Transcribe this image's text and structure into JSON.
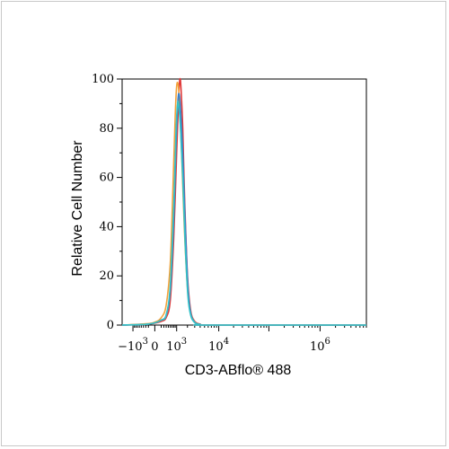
{
  "chart_data": {
    "type": "line",
    "title": "",
    "xlabel": "CD3-ABflo® 488",
    "ylabel": "Relative Cell Number",
    "x_scale": "biexponential",
    "xlim": [
      -2000,
      8000000
    ],
    "ylim": [
      0,
      100
    ],
    "y_ticks": [
      0,
      20,
      40,
      60,
      80,
      100
    ],
    "y_tick_labels": [
      "0",
      "20",
      "40",
      "60",
      "80",
      "100"
    ],
    "x_ticks": [
      -1000,
      0,
      1000,
      10000,
      1000000
    ],
    "x_tick_labels": [
      {
        "base": "−10",
        "exp": "3"
      },
      {
        "base": "0",
        "exp": ""
      },
      {
        "base": "10",
        "exp": "3"
      },
      {
        "base": "10",
        "exp": "4"
      },
      {
        "base": "10",
        "exp": "6"
      }
    ],
    "grid": false,
    "legend": "none",
    "series": [
      {
        "color": "#e03a3a",
        "points": [
          [
            -2000,
            0
          ],
          [
            -300,
            0.3
          ],
          [
            0,
            0.8
          ],
          [
            200,
            1.5
          ],
          [
            400,
            3
          ],
          [
            600,
            10
          ],
          [
            800,
            35
          ],
          [
            1000,
            70
          ],
          [
            1150,
            92
          ],
          [
            1250,
            100
          ],
          [
            1350,
            96
          ],
          [
            1500,
            80
          ],
          [
            1700,
            50
          ],
          [
            2000,
            20
          ],
          [
            2400,
            6
          ],
          [
            3000,
            1.5
          ],
          [
            4000,
            0.4
          ],
          [
            6000,
            0
          ],
          [
            8000000,
            0
          ]
        ]
      },
      {
        "color": "#f2a23a",
        "points": [
          [
            -2000,
            0
          ],
          [
            -300,
            0.5
          ],
          [
            0,
            1.2
          ],
          [
            200,
            3
          ],
          [
            400,
            8
          ],
          [
            600,
            25
          ],
          [
            750,
            55
          ],
          [
            900,
            85
          ],
          [
            1000,
            97
          ],
          [
            1100,
            98
          ],
          [
            1200,
            92
          ],
          [
            1400,
            70
          ],
          [
            1650,
            40
          ],
          [
            2000,
            15
          ],
          [
            2400,
            5
          ],
          [
            3000,
            1.3
          ],
          [
            4000,
            0.3
          ],
          [
            6000,
            0
          ],
          [
            8000000,
            0
          ]
        ]
      },
      {
        "color": "#3a7ec6",
        "points": [
          [
            -2000,
            0
          ],
          [
            -300,
            0.3
          ],
          [
            0,
            0.9
          ],
          [
            200,
            2
          ],
          [
            400,
            4
          ],
          [
            600,
            14
          ],
          [
            800,
            42
          ],
          [
            950,
            72
          ],
          [
            1080,
            90
          ],
          [
            1180,
            94
          ],
          [
            1300,
            88
          ],
          [
            1500,
            70
          ],
          [
            1750,
            42
          ],
          [
            2050,
            16
          ],
          [
            2400,
            5
          ],
          [
            3000,
            1.2
          ],
          [
            4000,
            0.3
          ],
          [
            6000,
            0
          ],
          [
            8000000,
            0
          ]
        ]
      },
      {
        "color": "#33c2c8",
        "points": [
          [
            -2000,
            0
          ],
          [
            -300,
            0.3
          ],
          [
            0,
            0.9
          ],
          [
            200,
            2
          ],
          [
            400,
            4
          ],
          [
            600,
            16
          ],
          [
            800,
            48
          ],
          [
            950,
            78
          ],
          [
            1070,
            90
          ],
          [
            1160,
            89
          ],
          [
            1300,
            80
          ],
          [
            1500,
            60
          ],
          [
            1750,
            33
          ],
          [
            2050,
            12
          ],
          [
            2400,
            4
          ],
          [
            3000,
            1
          ],
          [
            4000,
            0.2
          ],
          [
            6000,
            0
          ],
          [
            8000000,
            0
          ]
        ]
      }
    ]
  }
}
